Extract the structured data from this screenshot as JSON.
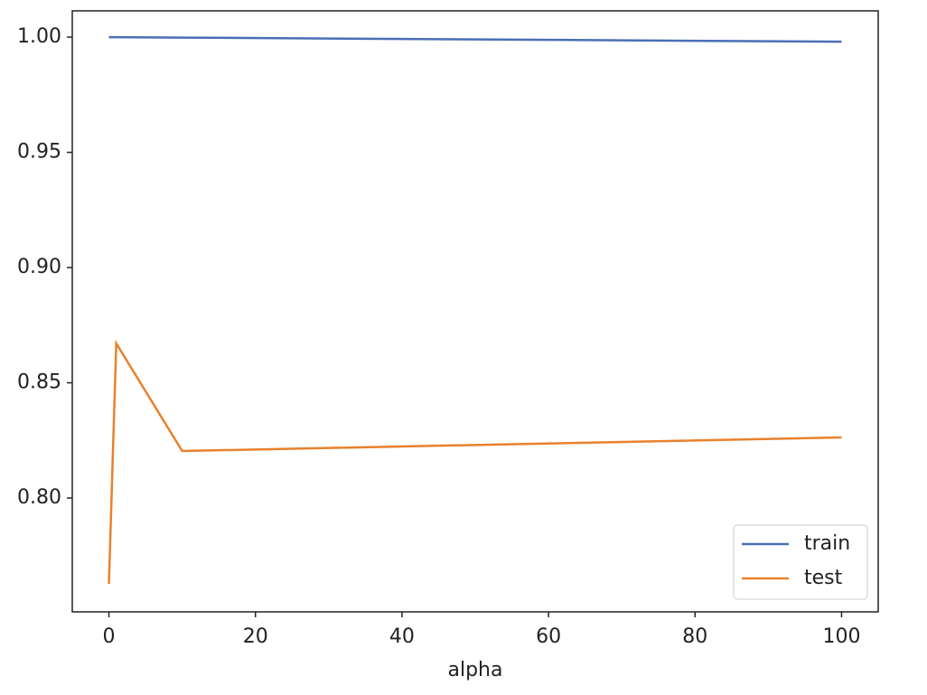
{
  "chart_data": {
    "type": "line",
    "xlabel": "alpha",
    "x": [
      0,
      1,
      10,
      100
    ],
    "series": [
      {
        "name": "train",
        "color": "#4a6fb5",
        "values": [
          1.0,
          1.0,
          0.9998,
          0.998
        ]
      },
      {
        "name": "test",
        "color": "#e8812d",
        "values": [
          0.7627,
          0.8671,
          0.8204,
          0.8263
        ]
      }
    ],
    "xlim": [
      -5,
      105
    ],
    "xticks": [
      0,
      20,
      40,
      60,
      80,
      100
    ],
    "ylim": [
      0.7506,
      1.0114
    ],
    "yticks": [
      {
        "value": 0.8,
        "label": "0.80"
      },
      {
        "value": 0.85,
        "label": "0.85"
      },
      {
        "value": 0.9,
        "label": "0.90"
      },
      {
        "value": 0.95,
        "label": "0.95"
      },
      {
        "value": 1.0,
        "label": "1.00"
      }
    ],
    "grid": false,
    "legend": "lower right"
  }
}
